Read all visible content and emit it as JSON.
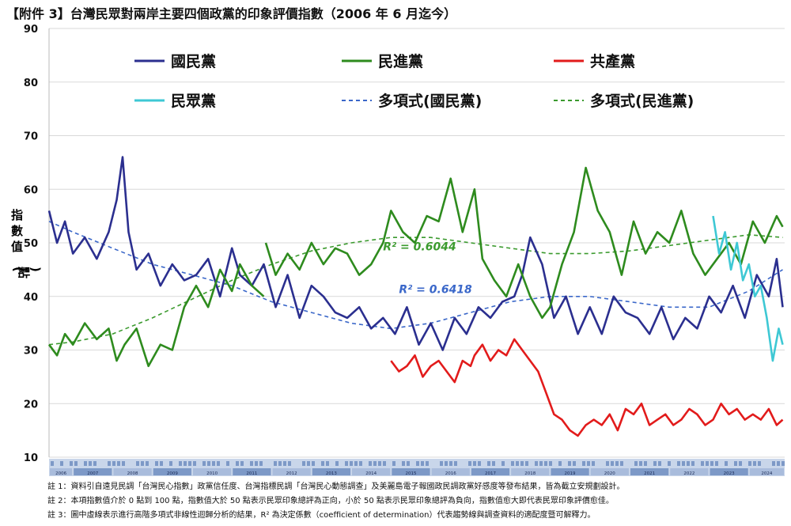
{
  "title": "【附件 3】台灣民眾對兩岸主要四個政黨的印象評價指數（2006 年 6 月迄今）",
  "colors": {
    "kmt": "#2b2f8f",
    "dpp": "#2e8b1e",
    "ccp": "#e21b1b",
    "tpp": "#3ec8d4",
    "kmt_trend": "#3a67c9",
    "dpp_trend": "#3b9a2e",
    "timeline_dark": "#7d99c7",
    "timeline_light": "#c9d6ea"
  },
  "chart_data": {
    "type": "line",
    "ylabel": "指數值(點)",
    "ylim": [
      10,
      90
    ],
    "yticks": [
      10,
      20,
      30,
      40,
      50,
      60,
      70,
      80,
      90
    ],
    "xlim": [
      2006.4,
      2024.9
    ],
    "grid": true,
    "legend_position": "top",
    "legend": [
      {
        "label": "國民黨",
        "key": "kmt",
        "style": "solid"
      },
      {
        "label": "民進黨",
        "key": "dpp",
        "style": "solid"
      },
      {
        "label": "共產黨",
        "key": "ccp",
        "style": "solid"
      },
      {
        "label": "民眾黨",
        "key": "tpp",
        "style": "solid"
      },
      {
        "label": "多項式(國民黨)",
        "key": "kmt_trend",
        "style": "dashed"
      },
      {
        "label": "多項式(民進黨)",
        "key": "dpp_trend",
        "style": "dashed"
      }
    ],
    "series": [
      {
        "name": "國民黨",
        "key": "kmt",
        "x": [
          2006.4,
          2006.6,
          2006.8,
          2007.0,
          2007.3,
          2007.6,
          2007.9,
          2008.1,
          2008.25,
          2008.4,
          2008.6,
          2008.9,
          2009.2,
          2009.5,
          2009.8,
          2010.1,
          2010.4,
          2010.7,
          2011.0,
          2011.2,
          2011.5,
          2011.8,
          2012.1,
          2012.4,
          2012.7,
          2013.0,
          2013.3,
          2013.6,
          2013.9,
          2014.2,
          2014.5,
          2014.8,
          2015.1,
          2015.4,
          2015.7,
          2016.0,
          2016.3,
          2016.6,
          2016.9,
          2017.2,
          2017.5,
          2017.8,
          2018.1,
          2018.3,
          2018.5,
          2018.8,
          2019.1,
          2019.4,
          2019.7,
          2020.0,
          2020.3,
          2020.6,
          2020.9,
          2021.2,
          2021.5,
          2021.8,
          2022.1,
          2022.4,
          2022.7,
          2023.0,
          2023.3,
          2023.6,
          2023.9,
          2024.2,
          2024.5,
          2024.7,
          2024.85
        ],
        "values": [
          56,
          50,
          54,
          48,
          51,
          47,
          52,
          58,
          66,
          52,
          45,
          48,
          42,
          46,
          43,
          44,
          47,
          40,
          49,
          44,
          42,
          46,
          38,
          44,
          36,
          42,
          40,
          37,
          36,
          38,
          34,
          36,
          33,
          38,
          31,
          35,
          30,
          36,
          33,
          38,
          36,
          39,
          40,
          44,
          51,
          46,
          36,
          40,
          33,
          38,
          33,
          40,
          37,
          36,
          33,
          38,
          32,
          36,
          34,
          40,
          37,
          42,
          36,
          44,
          40,
          47,
          38
        ]
      },
      {
        "name": "民進黨",
        "key": "dpp",
        "x": [
          2006.4,
          2006.6,
          2006.8,
          2007.0,
          2007.3,
          2007.6,
          2007.9,
          2008.1,
          2008.3,
          2008.6,
          2008.9,
          2009.2,
          2009.5,
          2009.8,
          2010.1,
          2010.4,
          2010.7,
          2011.0,
          2011.2,
          2011.5,
          2011.8
        ],
        "values": [
          31,
          29,
          33,
          31,
          35,
          32,
          34,
          28,
          31,
          34,
          27,
          31,
          30,
          38,
          42,
          38,
          45,
          41,
          46,
          42,
          40
        ]
      },
      {
        "name": "民進黨",
        "key": "dpp",
        "x": [
          2011.85,
          2012.1,
          2012.4,
          2012.7,
          2013.0,
          2013.3,
          2013.6,
          2013.9,
          2014.2,
          2014.5,
          2014.8,
          2015.0,
          2015.3,
          2015.6,
          2015.9,
          2016.2,
          2016.5,
          2016.8,
          2017.1,
          2017.3,
          2017.6,
          2017.9,
          2018.2,
          2018.5,
          2018.8,
          2019.0,
          2019.3,
          2019.6,
          2019.9,
          2020.2,
          2020.5,
          2020.8,
          2021.1,
          2021.4,
          2021.7,
          2022.0,
          2022.3,
          2022.6,
          2022.9,
          2023.2,
          2023.5,
          2023.8,
          2024.1,
          2024.4,
          2024.7,
          2024.85
        ],
        "values": [
          50,
          44,
          48,
          45,
          50,
          46,
          49,
          48,
          44,
          46,
          50,
          56,
          52,
          50,
          55,
          54,
          62,
          52,
          60,
          47,
          43,
          40,
          46,
          40,
          36,
          38,
          46,
          52,
          64,
          56,
          52,
          44,
          54,
          48,
          52,
          50,
          56,
          48,
          44,
          47,
          50,
          46,
          54,
          50,
          55,
          53
        ]
      },
      {
        "name": "共產黨",
        "key": "ccp",
        "x": [
          2015.0,
          2015.2,
          2015.4,
          2015.6,
          2015.8,
          2016.0,
          2016.2,
          2016.4,
          2016.6,
          2016.8,
          2017.0,
          2017.1,
          2017.3,
          2017.5,
          2017.7,
          2017.9,
          2018.1,
          2018.3,
          2018.5,
          2018.7,
          2018.9,
          2019.1,
          2019.3,
          2019.5,
          2019.7,
          2019.9,
          2020.1,
          2020.3,
          2020.5,
          2020.7,
          2020.9,
          2021.1,
          2021.3,
          2021.5,
          2021.7,
          2021.9,
          2022.1,
          2022.3,
          2022.5,
          2022.7,
          2022.9,
          2023.1,
          2023.3,
          2023.5,
          2023.7,
          2023.9,
          2024.1,
          2024.3,
          2024.5,
          2024.7,
          2024.85
        ],
        "values": [
          28,
          26,
          27,
          29,
          25,
          27,
          28,
          26,
          24,
          28,
          27,
          29,
          31,
          28,
          30,
          29,
          32,
          30,
          28,
          26,
          22,
          18,
          17,
          15,
          14,
          16,
          17,
          16,
          18,
          15,
          19,
          18,
          20,
          16,
          17,
          18,
          16,
          17,
          19,
          18,
          16,
          17,
          20,
          18,
          19,
          17,
          18,
          17,
          19,
          16,
          17
        ]
      },
      {
        "name": "民眾黨",
        "key": "tpp",
        "x": [
          2023.1,
          2023.25,
          2023.4,
          2023.55,
          2023.7,
          2023.85,
          2024.0,
          2024.15,
          2024.3,
          2024.45,
          2024.6,
          2024.75,
          2024.85
        ],
        "values": [
          55,
          48,
          52,
          45,
          50,
          43,
          46,
          40,
          42,
          36,
          28,
          34,
          31
        ]
      }
    ],
    "trends": [
      {
        "name": "多項式(國民黨)",
        "key": "kmt_trend",
        "r2": "R² = 0.6418",
        "x": [
          2006.4,
          2007,
          2008,
          2009,
          2010,
          2011,
          2012,
          2013,
          2014,
          2015,
          2016,
          2017,
          2018,
          2019,
          2020,
          2021,
          2022,
          2023,
          2024,
          2024.85
        ],
        "values": [
          54,
          52,
          49,
          46,
          44,
          42,
          39,
          37,
          35,
          34,
          35,
          37,
          39,
          40,
          40,
          39,
          38,
          38,
          41,
          45
        ]
      },
      {
        "name": "多項式(民進黨)",
        "key": "dpp_trend",
        "r2": "R² = 0.6044",
        "x": [
          2006.4,
          2007,
          2008,
          2009,
          2010,
          2011,
          2012,
          2013,
          2014,
          2015,
          2016,
          2017,
          2018,
          2019,
          2020,
          2021,
          2022,
          2023,
          2024,
          2024.85
        ],
        "values": [
          31,
          31.5,
          33,
          36,
          39.5,
          43,
          46,
          48.5,
          50,
          51,
          51,
          50,
          49,
          48,
          48,
          48.5,
          49.5,
          50.5,
          51.5,
          51
        ]
      }
    ],
    "timeline_years": [
      "2006",
      "2007",
      "2008",
      "2009",
      "2010",
      "2011",
      "2012",
      "2013",
      "2014",
      "2015",
      "2016",
      "2017",
      "2018",
      "2019",
      "2020",
      "2021",
      "2022",
      "2023",
      "2024"
    ]
  },
  "notes": [
    "註 1：資料引自遠見民調「台灣民心指數」政黨信任度、台灣指標民調「台灣民心動態調查」及美麗島電子報國政民調政黨好感度等發布結果，皆為截立安規劃設計。",
    "註 2：本項指數值介於 0 點到 100 點，指數值大於 50 點表示民眾印象總評為正向，小於 50 點表示民眾印象總評為負向，指數值愈大即代表民眾印象評價愈佳。",
    "註 3：圖中虛線表示進行高階多項式非線性迴歸分析的結果，R² 為決定係數（coefficient of determination）代表趨勢線與調查資料的適配度暨可解釋力。"
  ]
}
